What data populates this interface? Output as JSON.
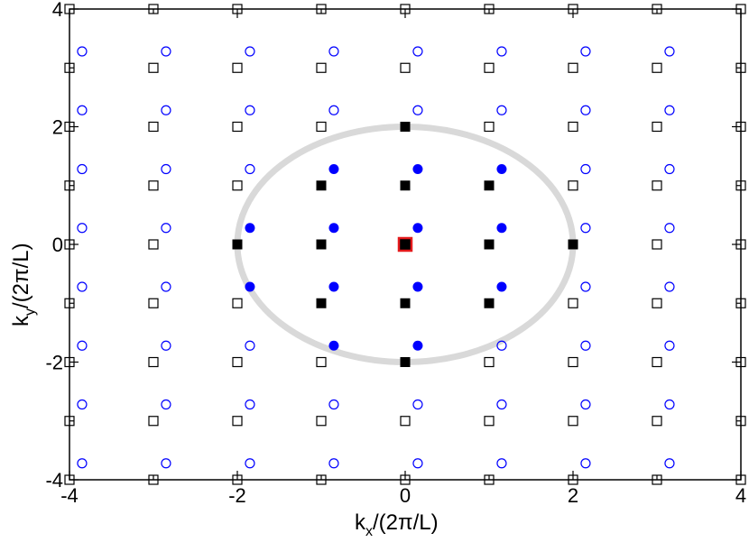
{
  "chart_data": {
    "type": "scatter",
    "title": "",
    "xlabel": {
      "main": "k",
      "sub": "x",
      "rest": "/(2π/L)"
    },
    "ylabel": {
      "main": "k",
      "sub": "y",
      "rest": "/(2π/L)"
    },
    "xlim": [
      -4,
      4
    ],
    "ylim": [
      -4,
      4
    ],
    "xticks": [
      -4,
      -2,
      0,
      2,
      4
    ],
    "yticks": [
      -4,
      -2,
      0,
      2,
      4
    ],
    "xtick_labels": [
      "-4",
      "-2",
      "0",
      "2",
      "4"
    ],
    "ytick_labels": [
      "-4",
      "-2",
      "0",
      "2",
      "4"
    ],
    "grid": false,
    "circle": {
      "center": [
        0,
        0
      ],
      "radius": 2,
      "color": "#d9d9d9"
    },
    "series": [
      {
        "marker": "open-square",
        "color": "#000000",
        "grid_range": [
          -4,
          4
        ],
        "excluded_points": [
          [
            0,
            0
          ],
          [
            0,
            1
          ],
          [
            0,
            -1
          ],
          [
            1,
            0
          ],
          [
            -1,
            0
          ],
          [
            1,
            1
          ],
          [
            1,
            -1
          ],
          [
            -1,
            1
          ],
          [
            -1,
            -1
          ],
          [
            0,
            2
          ],
          [
            0,
            -2
          ],
          [
            2,
            0
          ],
          [
            -2,
            0
          ]
        ]
      },
      {
        "marker": "filled-square",
        "color": "#000000",
        "points": [
          [
            0,
            1
          ],
          [
            0,
            -1
          ],
          [
            1,
            0
          ],
          [
            -1,
            0
          ],
          [
            1,
            1
          ],
          [
            1,
            -1
          ],
          [
            -1,
            1
          ],
          [
            -1,
            -1
          ],
          [
            0,
            2
          ],
          [
            0,
            -2
          ],
          [
            2,
            0
          ],
          [
            -2,
            0
          ]
        ]
      },
      {
        "marker": "filled-square-red-outline",
        "color": "#000000",
        "outline": "#e41a1c",
        "points": [
          [
            0,
            0
          ]
        ]
      },
      {
        "marker": "open-circle",
        "color": "#0000ff",
        "x_values": [
          -3.85,
          -2.85,
          -1.85,
          -0.85,
          0.15,
          1.15,
          2.15,
          3.15
        ],
        "y_values": [
          -3.72,
          -2.72,
          -1.72,
          -0.72,
          0.28,
          1.28,
          2.28,
          3.28
        ],
        "excluded_points": [
          [
            -1.85,
            -0.72
          ],
          [
            -0.85,
            -0.72
          ],
          [
            0.15,
            -0.72
          ],
          [
            1.15,
            -0.72
          ],
          [
            -1.85,
            0.28
          ],
          [
            -0.85,
            0.28
          ],
          [
            0.15,
            0.28
          ],
          [
            1.15,
            0.28
          ],
          [
            -0.85,
            1.28
          ],
          [
            0.15,
            1.28
          ],
          [
            1.15,
            1.28
          ],
          [
            -0.85,
            -1.72
          ],
          [
            0.15,
            -1.72
          ]
        ]
      },
      {
        "marker": "filled-circle",
        "color": "#0000ff",
        "points": [
          [
            -1.85,
            -0.72
          ],
          [
            -0.85,
            -0.72
          ],
          [
            0.15,
            -0.72
          ],
          [
            1.15,
            -0.72
          ],
          [
            -1.85,
            0.28
          ],
          [
            -0.85,
            0.28
          ],
          [
            0.15,
            0.28
          ],
          [
            1.15,
            0.28
          ],
          [
            -0.85,
            1.28
          ],
          [
            0.15,
            1.28
          ],
          [
            1.15,
            1.28
          ],
          [
            -0.85,
            -1.72
          ],
          [
            0.15,
            -1.72
          ]
        ]
      }
    ]
  }
}
